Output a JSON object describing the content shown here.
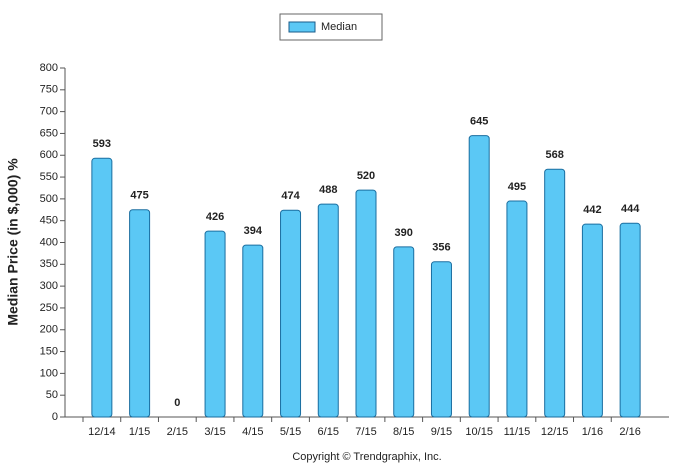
{
  "chart_data": {
    "type": "bar",
    "y_label": "Median Price (in $,000) %",
    "source": "Copyright © Trendgraphix, Inc.",
    "categories": [
      "12/14",
      "1/15",
      "2/15",
      "3/15",
      "4/15",
      "5/15",
      "6/15",
      "7/15",
      "8/15",
      "9/15",
      "10/15",
      "11/15",
      "12/15",
      "1/16",
      "2/16"
    ],
    "series": [
      {
        "name": "Median",
        "color": "#5bc8f5",
        "values": [
          593,
          475,
          0,
          426,
          394,
          474,
          488,
          520,
          390,
          356,
          645,
          495,
          568,
          442,
          444
        ]
      }
    ],
    "ylim": [
      0,
      800
    ],
    "yticks": [
      0,
      50,
      100,
      150,
      200,
      250,
      300,
      350,
      400,
      450,
      500,
      550,
      600,
      650,
      700,
      750,
      800
    ],
    "legend": "top"
  }
}
